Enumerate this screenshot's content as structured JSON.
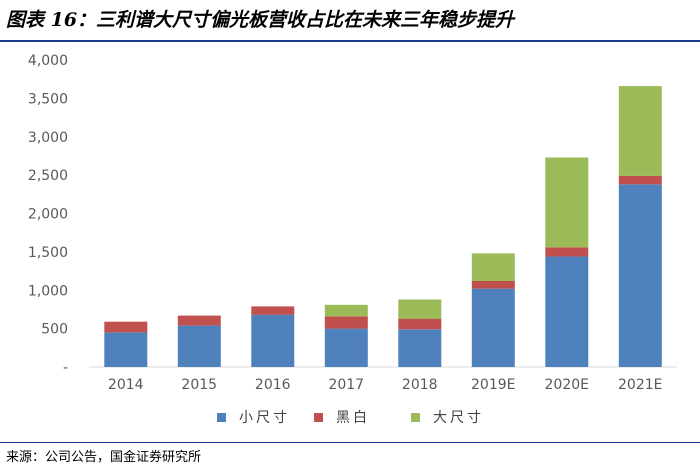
{
  "figure": {
    "title": "图表 16：三利谱大尺寸偏光板营收占比在未来三年稳步提升",
    "source": "来源：公司公告，国金证券研究所"
  },
  "chart_data": {
    "type": "bar",
    "stacked": true,
    "categories": [
      "2014",
      "2015",
      "2016",
      "2017",
      "2018",
      "2019E",
      "2020E",
      "2021E"
    ],
    "series": [
      {
        "name": "小尺寸",
        "color": "#4f81bd",
        "values": [
          450,
          540,
          680,
          500,
          490,
          1020,
          1440,
          2380
        ]
      },
      {
        "name": "黑白",
        "color": "#c0504d",
        "values": [
          140,
          130,
          110,
          160,
          140,
          100,
          120,
          110
        ]
      },
      {
        "name": "大尺寸",
        "color": "#9bbb59",
        "values": [
          0,
          0,
          0,
          150,
          250,
          360,
          1170,
          1170
        ]
      }
    ],
    "y_ticks": [
      "-",
      "500",
      "1,000",
      "1,500",
      "2,000",
      "2,500",
      "3,000",
      "3,500",
      "4,000"
    ],
    "ylim": [
      0,
      4000
    ],
    "grid": false,
    "legend_position": "bottom"
  }
}
